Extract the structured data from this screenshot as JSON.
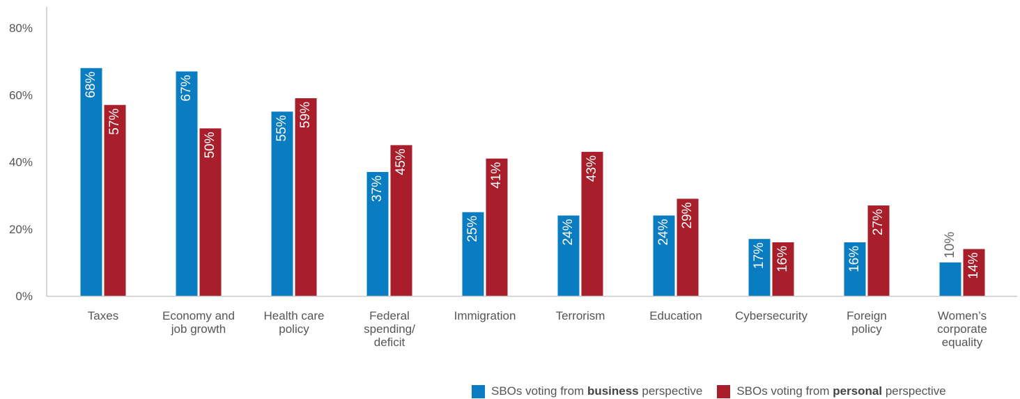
{
  "chart_data": {
    "type": "bar",
    "categories": [
      [
        "Taxes"
      ],
      [
        "Economy and",
        "job growth"
      ],
      [
        "Health care",
        "policy"
      ],
      [
        "Federal",
        "spending/",
        "deficit"
      ],
      [
        "Immigration"
      ],
      [
        "Terrorism"
      ],
      [
        "Education"
      ],
      [
        "Cybersecurity"
      ],
      [
        "Foreign",
        "policy"
      ],
      [
        "Women’s",
        "corporate",
        "equality"
      ]
    ],
    "series": [
      {
        "name": "SBOs voting from business perspective",
        "color": "#0a7cc1",
        "values": [
          68,
          67,
          55,
          37,
          25,
          24,
          24,
          17,
          16,
          10
        ],
        "labels": [
          "68%",
          "67%",
          "55%",
          "37%",
          "25%",
          "24%",
          "24%",
          "17%",
          "16%",
          "10%"
        ]
      },
      {
        "name": "SBOs voting from personal perspective",
        "color": "#a81e2b",
        "values": [
          57,
          50,
          59,
          45,
          41,
          43,
          29,
          16,
          27,
          14
        ],
        "labels": [
          "57%",
          "50%",
          "59%",
          "45%",
          "41%",
          "43%",
          "29%",
          "16%",
          "27%",
          "14%"
        ]
      }
    ],
    "yticks": [
      "0%",
      "20%",
      "40%",
      "60%",
      "80%"
    ],
    "ylim": [
      0,
      80
    ],
    "grid": false,
    "legend_position": "bottom-right"
  },
  "legend": {
    "business": {
      "prefix": "SBOs voting from ",
      "bold": "business",
      "suffix": " perspective"
    },
    "personal": {
      "prefix": "SBOs voting from ",
      "bold": "personal",
      "suffix": " perspective"
    }
  }
}
